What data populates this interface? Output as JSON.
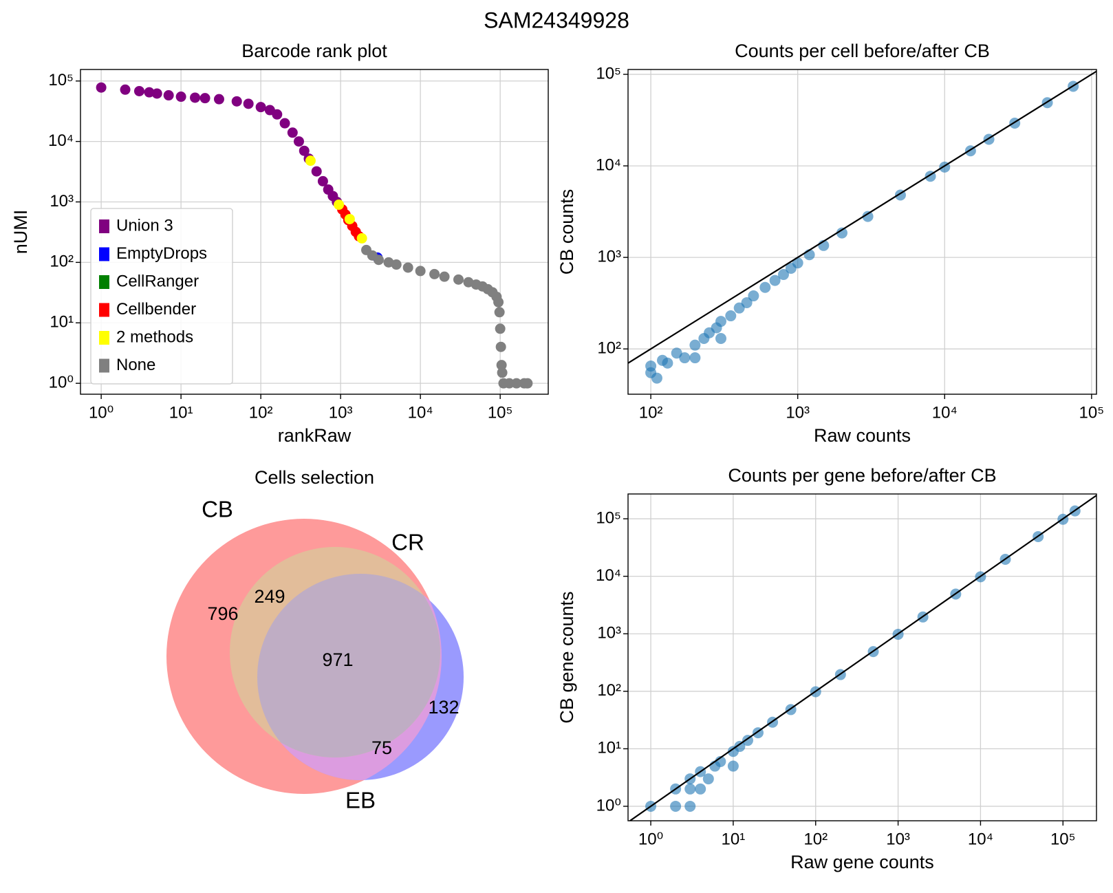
{
  "title": "SAM24349928",
  "chart_data": [
    {
      "type": "scatter",
      "title": "Barcode rank plot",
      "xlabel": "rankRaw",
      "ylabel": "nUMI",
      "xscale": "log",
      "yscale": "log",
      "grid": true,
      "legend": "lower left",
      "xlim": [
        0.55,
        400000
      ],
      "ylim": [
        0.66,
        155000
      ],
      "xticks": [
        {
          "value": 1,
          "label": "10⁰"
        },
        {
          "value": 10,
          "label": "10¹"
        },
        {
          "value": 100,
          "label": "10²"
        },
        {
          "value": 1000,
          "label": "10³"
        },
        {
          "value": 10000,
          "label": "10⁴"
        },
        {
          "value": 100000,
          "label": "10⁵"
        }
      ],
      "yticks": [
        {
          "value": 1,
          "label": "10⁰"
        },
        {
          "value": 10,
          "label": "10¹"
        },
        {
          "value": 100,
          "label": "10²"
        },
        {
          "value": 1000,
          "label": "10³"
        },
        {
          "value": 10000,
          "label": "10⁴"
        },
        {
          "value": 100000,
          "label": "10⁵"
        }
      ],
      "series": [
        {
          "name": "Union 3",
          "color": "#800080",
          "x": [
            1,
            2,
            3,
            4,
            5,
            7,
            10,
            15,
            20,
            30,
            50,
            70,
            100,
            130,
            160,
            200,
            250,
            300,
            350,
            400,
            500,
            600,
            700,
            800,
            900
          ],
          "values": [
            78000,
            72000,
            68000,
            65000,
            62000,
            58000,
            55000,
            53000,
            52000,
            50000,
            46000,
            42000,
            37000,
            33000,
            28000,
            20000,
            14000,
            10000,
            7000,
            5200,
            3200,
            2200,
            1600,
            1250,
            1000
          ]
        },
        {
          "name": "EmptyDrops",
          "color": "#0000ff",
          "x": [
            2900
          ],
          "values": [
            120
          ]
        },
        {
          "name": "CellRanger",
          "color": "#008000",
          "x": [],
          "values": []
        },
        {
          "name": "Cellbender",
          "color": "#ff0000",
          "x": [
            1050,
            1150,
            1250,
            1400,
            1550,
            1700
          ],
          "values": [
            750,
            620,
            500,
            400,
            320,
            270
          ]
        },
        {
          "name": "2 methods",
          "color": "#ffff00",
          "x": [
            420,
            950,
            1300,
            1850
          ],
          "values": [
            4800,
            900,
            520,
            250
          ]
        },
        {
          "name": "None",
          "color": "#808080",
          "x": [
            2100,
            2500,
            3000,
            4000,
            5000,
            7000,
            10000,
            15000,
            20000,
            30000,
            40000,
            50000,
            60000,
            70000,
            80000,
            90000,
            95000,
            98000,
            100000,
            102000,
            104000,
            106000,
            110000,
            130000,
            160000,
            200000,
            220000
          ],
          "values": [
            160,
            130,
            110,
            100,
            92,
            82,
            72,
            64,
            58,
            52,
            47,
            43,
            40,
            36,
            32,
            27,
            22,
            15,
            8,
            4,
            2,
            1.5,
            1,
            1,
            1,
            1,
            1
          ]
        }
      ]
    },
    {
      "type": "scatter",
      "title": "Counts per cell before/after CB",
      "xlabel": "Raw counts",
      "ylabel": "CB counts",
      "xscale": "log",
      "yscale": "log",
      "grid": true,
      "diagonal": true,
      "xlim": [
        70,
        108000
      ],
      "ylim": [
        32,
        113000
      ],
      "xticks": [
        {
          "value": 100,
          "label": "10²"
        },
        {
          "value": 1000,
          "label": "10³"
        },
        {
          "value": 10000,
          "label": "10⁴"
        },
        {
          "value": 100000,
          "label": "10⁵"
        }
      ],
      "yticks": [
        {
          "value": 100,
          "label": "10²"
        },
        {
          "value": 1000,
          "label": "10³"
        },
        {
          "value": 10000,
          "label": "10⁴"
        },
        {
          "value": 100000,
          "label": "10⁵"
        }
      ],
      "series": [
        {
          "color": "#1f77b4",
          "x": [
            100,
            100,
            110,
            120,
            130,
            150,
            170,
            200,
            200,
            230,
            250,
            280,
            300,
            300,
            350,
            400,
            450,
            500,
            600,
            700,
            800,
            900,
            1000,
            1200,
            1500,
            2000,
            3000,
            5000,
            8000,
            10000,
            15000,
            20000,
            30000,
            50000,
            75000
          ],
          "values": [
            65,
            55,
            48,
            75,
            70,
            90,
            80,
            110,
            80,
            130,
            150,
            170,
            200,
            130,
            230,
            280,
            320,
            380,
            470,
            560,
            650,
            760,
            870,
            1070,
            1350,
            1850,
            2800,
            4800,
            7700,
            9700,
            14600,
            19500,
            29300,
            49000,
            74000
          ]
        }
      ]
    },
    {
      "type": "venn",
      "title": "Cells selection",
      "sets": [
        "CB",
        "CR",
        "EB"
      ],
      "regions": {
        "CB": 796,
        "CB_CR": 249,
        "CB_CR_EB": 971,
        "EB": 132,
        "CB_EB": 75
      }
    },
    {
      "type": "scatter",
      "title": "Counts per gene before/after CB",
      "xlabel": "Raw gene counts",
      "ylabel": "CB gene counts",
      "xscale": "log",
      "yscale": "log",
      "grid": true,
      "diagonal": true,
      "xlim": [
        0.53,
        255000
      ],
      "ylim": [
        0.56,
        270000
      ],
      "xticks": [
        {
          "value": 1,
          "label": "10⁰"
        },
        {
          "value": 10,
          "label": "10¹"
        },
        {
          "value": 100,
          "label": "10²"
        },
        {
          "value": 1000,
          "label": "10³"
        },
        {
          "value": 10000,
          "label": "10⁴"
        },
        {
          "value": 100000,
          "label": "10⁵"
        }
      ],
      "yticks": [
        {
          "value": 1,
          "label": "10⁰"
        },
        {
          "value": 10,
          "label": "10¹"
        },
        {
          "value": 100,
          "label": "10²"
        },
        {
          "value": 1000,
          "label": "10³"
        },
        {
          "value": 10000,
          "label": "10⁴"
        },
        {
          "value": 100000,
          "label": "10⁵"
        }
      ],
      "series": [
        {
          "color": "#1f77b4",
          "x": [
            1,
            2,
            2,
            3,
            3,
            3,
            4,
            4,
            5,
            6,
            7,
            10,
            10,
            12,
            15,
            20,
            30,
            50,
            100,
            200,
            500,
            1000,
            2000,
            5000,
            10000,
            20000,
            50000,
            100000,
            140000
          ],
          "values": [
            1,
            1,
            2,
            1,
            2,
            3,
            2,
            4,
            3,
            5,
            6,
            5,
            9,
            11,
            14,
            19,
            29,
            48,
            98,
            195,
            490,
            980,
            1960,
            4900,
            9800,
            19700,
            49000,
            98000,
            137000
          ]
        }
      ]
    }
  ]
}
